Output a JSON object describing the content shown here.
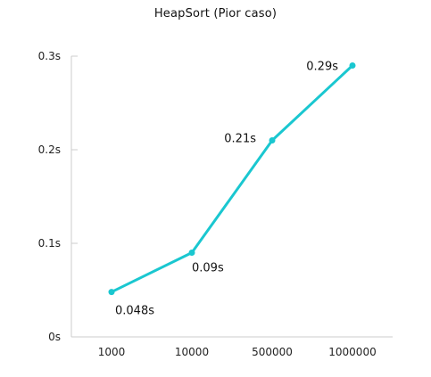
{
  "chart_data": {
    "type": "line",
    "title": "HeapSort (Pior caso)",
    "xlabel": "",
    "ylabel": "",
    "categories": [
      "1000",
      "10000",
      "500000",
      "1000000"
    ],
    "series": [
      {
        "values": [
          0.048,
          0.09,
          0.21,
          0.29
        ],
        "data_labels": [
          "0.048s",
          "0.09s",
          "0.21s",
          "0.29s"
        ],
        "color": "#1ac7d0"
      }
    ],
    "ylim": [
      0,
      0.3
    ],
    "yticks": [
      0,
      0.1,
      0.2,
      0.3
    ],
    "ytick_labels": [
      "0s",
      "0.1s",
      "0.2s",
      "0.3s"
    ],
    "grid": false,
    "legend": "none",
    "axis_color": "#cccccc"
  }
}
